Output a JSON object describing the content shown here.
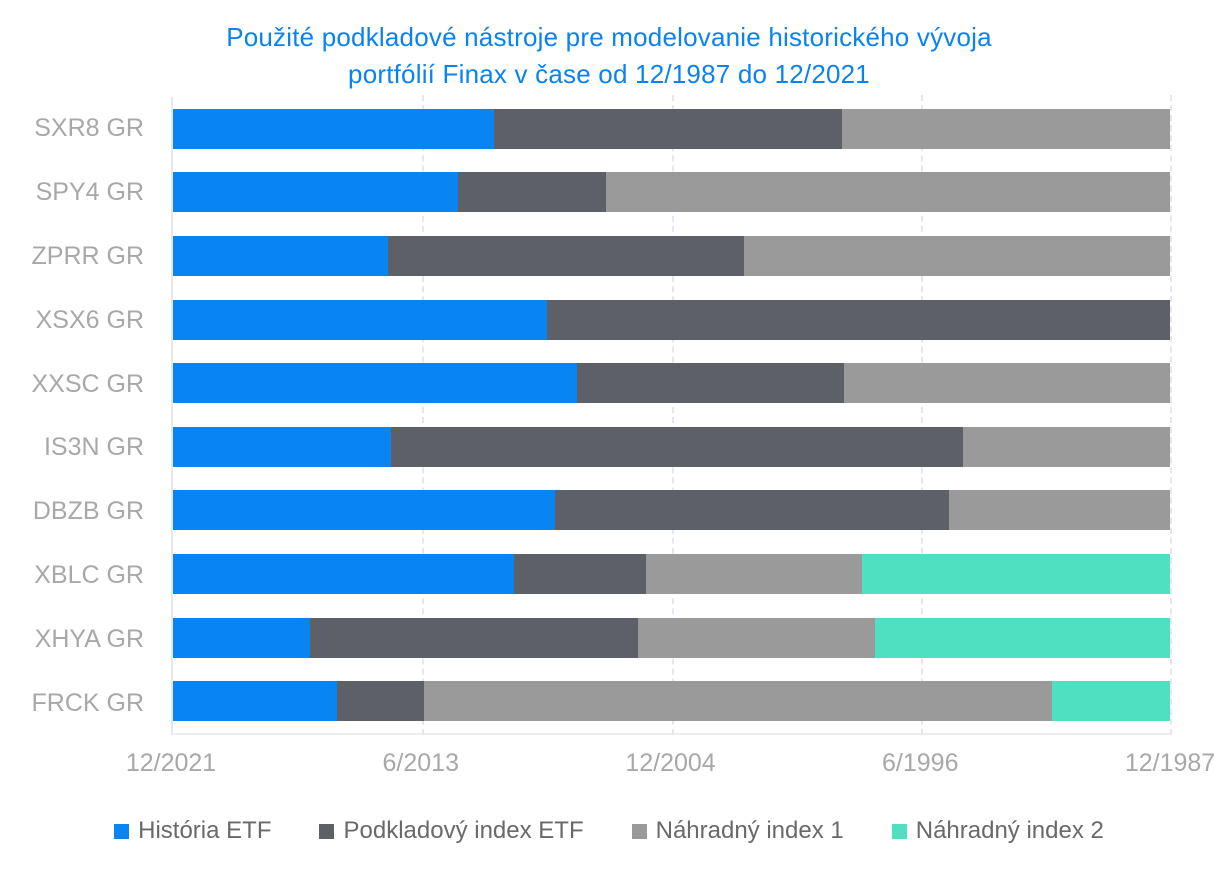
{
  "title": {
    "line1": "Použité podkladové nástroje pre modelovanie historického vývoja",
    "line2": "portfólií Finax v čase od 12/1987 do 12/2021"
  },
  "colors": {
    "title_text": "#0b82f2",
    "historia_etf_blue": "#0884f3",
    "podkladovy_index_dark": "#5d6067",
    "nahradny_index_1_gray": "#9a9a9a",
    "nahradny_index_2_teal": "#4fdfc1",
    "axis_label_text": "#a8a8a8",
    "legend_text": "#696969"
  },
  "chart_data": {
    "type": "bar",
    "variant": "horizontal-stacked",
    "title": "Použité podkladové nástroje pre modelovanie historického vývoja portfólií Finax v čase od 12/1987 do 12/2021",
    "categories": [
      "SXR8 GR",
      "SPY4 GR",
      "ZPRR GR",
      "XSX6 GR",
      "XXSC GR",
      "IS3N GR",
      "DBZB GR",
      "XBLC GR",
      "XHYA GR",
      "FRCK GR"
    ],
    "x_axis": {
      "tick_labels": [
        "12/2021",
        "6/2013",
        "12/2004",
        "6/1996",
        "12/1987"
      ],
      "tick_positions_pct": [
        0,
        25,
        50,
        75,
        100
      ],
      "direction": "reversed-time, 12/2021 at left edge and 12/1987 at right edge",
      "span_years": 34,
      "grid": "vertical dashed gridlines at each tick"
    },
    "series": [
      {
        "name": "História ETF",
        "color": "#0884f3",
        "values_pct": [
          32.2,
          28.6,
          21.6,
          37.5,
          40.5,
          21.9,
          38.3,
          34.2,
          13.7,
          16.4
        ]
      },
      {
        "name": "Podkladový index ETF",
        "color": "#5d6067",
        "values_pct": [
          34.9,
          14.8,
          35.7,
          62.5,
          26.8,
          57.3,
          39.5,
          13.2,
          32.9,
          8.8
        ]
      },
      {
        "name": "Náhradný index 1",
        "color": "#9a9a9a",
        "values_pct": [
          32.9,
          56.6,
          42.7,
          0.0,
          32.7,
          20.8,
          22.2,
          21.7,
          23.8,
          63.0
        ]
      },
      {
        "name": "Náhradný index 2",
        "color": "#4fdfc1",
        "values_pct": [
          0.0,
          0.0,
          0.0,
          0.0,
          0.0,
          0.0,
          0.0,
          30.9,
          29.6,
          11.8
        ]
      }
    ],
    "values_unit": "percent of the 12/2021→12/1987 time span covered by each data source",
    "legend_position": "bottom"
  }
}
